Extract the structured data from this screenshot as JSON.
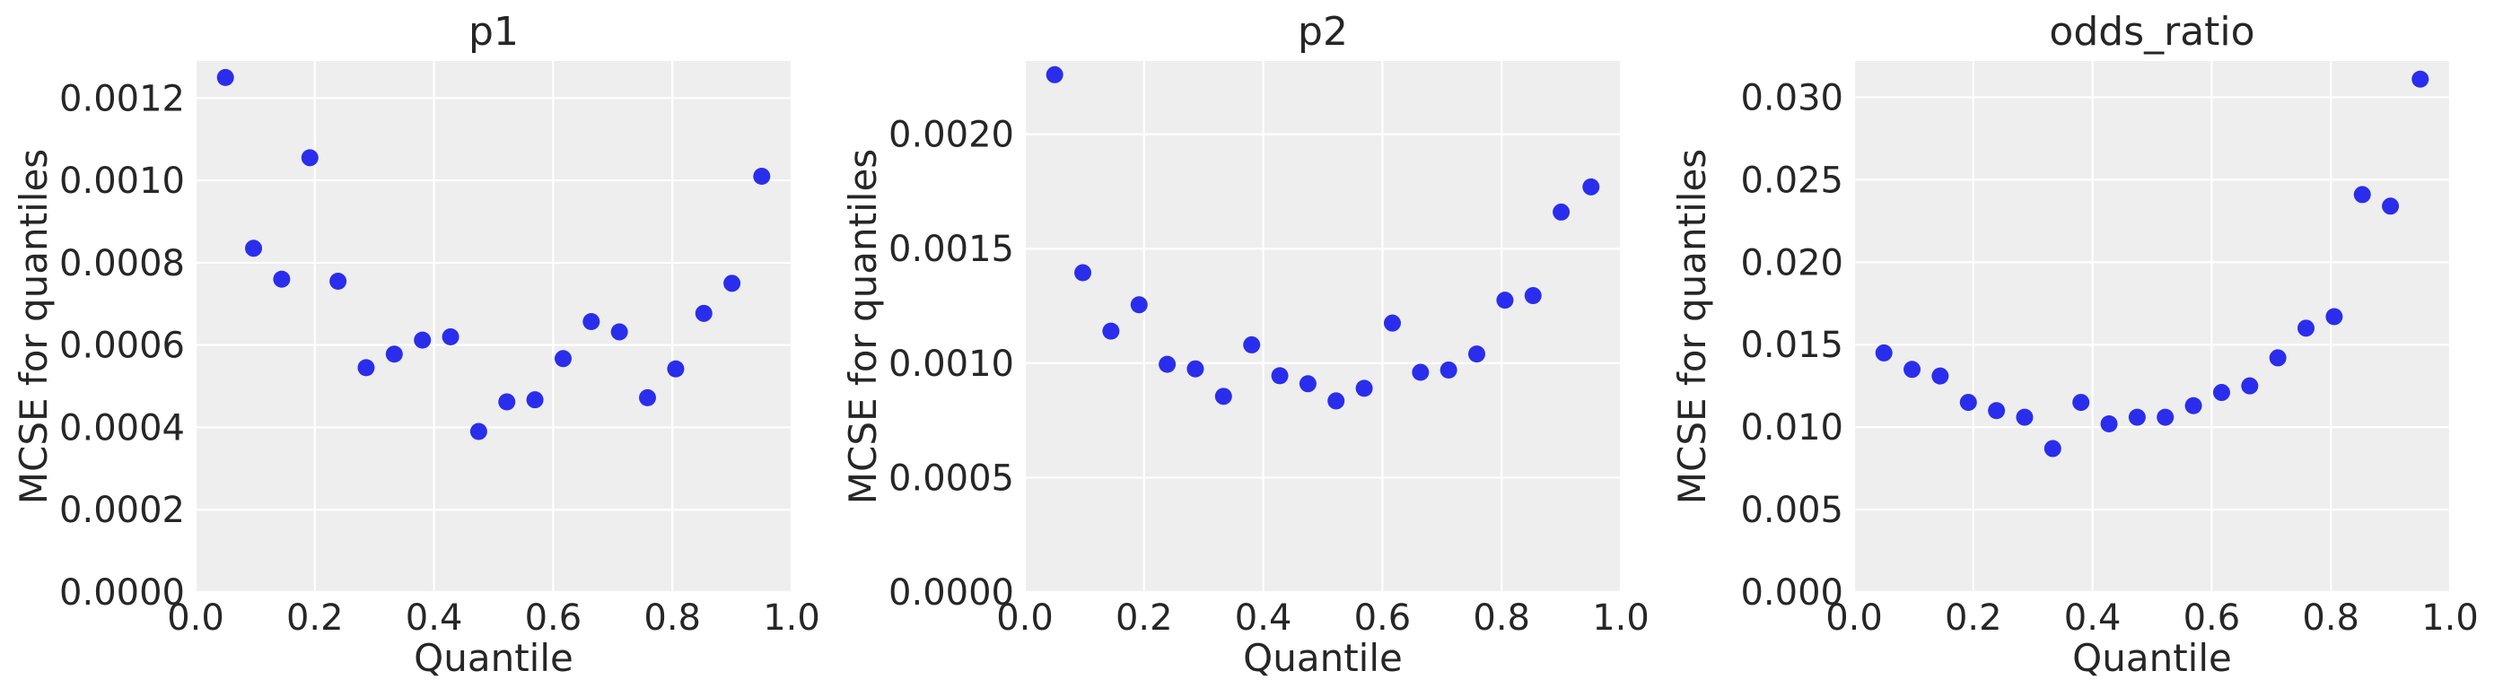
{
  "colors": {
    "marker": "#2a2eec",
    "plot_background": "#eeeeee",
    "grid": "#ffffff",
    "text": "#262626"
  },
  "chart_data": [
    {
      "type": "scatter",
      "title": "p1",
      "xlabel": "Quantile",
      "ylabel": "MCSE for quantiles",
      "xlim": [
        0.0,
        1.0
      ],
      "ylim": [
        0.0,
        0.00129
      ],
      "grid": true,
      "legend": "none",
      "x_ticks": [
        0.0,
        0.2,
        0.4,
        0.6,
        0.8,
        1.0
      ],
      "x_tick_labels": [
        "0.0",
        "0.2",
        "0.4",
        "0.6",
        "0.8",
        "1.0"
      ],
      "y_ticks": [
        0.0,
        0.0002,
        0.0004,
        0.0006,
        0.0008,
        0.001,
        0.0012
      ],
      "y_tick_labels": [
        "0.0000",
        "0.0002",
        "0.0004",
        "0.0006",
        "0.0008",
        "0.0010",
        "0.0012"
      ],
      "x": [
        0.05,
        0.0972,
        0.1444,
        0.1917,
        0.2389,
        0.2861,
        0.3333,
        0.3806,
        0.4278,
        0.475,
        0.5222,
        0.5694,
        0.6167,
        0.6639,
        0.7111,
        0.7583,
        0.8056,
        0.8528,
        0.9,
        0.95
      ],
      "y": [
        0.00125,
        0.000835,
        0.00076,
        0.001055,
        0.000755,
        0.000545,
        0.000578,
        0.000612,
        0.00062,
        0.00039,
        0.000462,
        0.000467,
        0.000567,
        0.000657,
        0.000632,
        0.000472,
        0.000542,
        0.000677,
        0.00075,
        0.00101
      ]
    },
    {
      "type": "scatter",
      "title": "p2",
      "xlabel": "Quantile",
      "ylabel": "MCSE for quantiles",
      "xlim": [
        0.0,
        1.0
      ],
      "ylim": [
        0.0,
        0.00232
      ],
      "grid": true,
      "legend": "none",
      "x_ticks": [
        0.0,
        0.2,
        0.4,
        0.6,
        0.8,
        1.0
      ],
      "x_tick_labels": [
        "0.0",
        "0.2",
        "0.4",
        "0.6",
        "0.8",
        "1.0"
      ],
      "y_ticks": [
        0.0,
        0.0005,
        0.001,
        0.0015,
        0.002
      ],
      "y_tick_labels": [
        "0.0000",
        "0.0005",
        "0.0010",
        "0.0015",
        "0.0020"
      ],
      "x": [
        0.05,
        0.0972,
        0.1444,
        0.1917,
        0.2389,
        0.2861,
        0.3333,
        0.3806,
        0.4278,
        0.475,
        0.5222,
        0.5694,
        0.6167,
        0.6639,
        0.7111,
        0.7583,
        0.8056,
        0.8528,
        0.9,
        0.95
      ],
      "y": [
        0.00226,
        0.001395,
        0.00114,
        0.001255,
        0.000995,
        0.000975,
        0.000855,
        0.00108,
        0.000945,
        0.00091,
        0.000835,
        0.00089,
        0.001175,
        0.00096,
        0.00097,
        0.00104,
        0.001275,
        0.001295,
        0.00166,
        0.00177
      ]
    },
    {
      "type": "scatter",
      "title": "odds_ratio",
      "xlabel": "Quantile",
      "ylabel": "MCSE for quantiles",
      "xlim": [
        0.0,
        1.0
      ],
      "ylim": [
        0.0,
        0.0322
      ],
      "grid": true,
      "legend": "none",
      "x_ticks": [
        0.0,
        0.2,
        0.4,
        0.6,
        0.8,
        1.0
      ],
      "x_tick_labels": [
        "0.0",
        "0.2",
        "0.4",
        "0.6",
        "0.8",
        "1.0"
      ],
      "y_ticks": [
        0.0,
        0.005,
        0.01,
        0.015,
        0.02,
        0.025,
        0.03
      ],
      "y_tick_labels": [
        "0.000",
        "0.005",
        "0.010",
        "0.015",
        "0.020",
        "0.025",
        "0.030"
      ],
      "x": [
        0.05,
        0.0972,
        0.1444,
        0.1917,
        0.2389,
        0.2861,
        0.3333,
        0.3806,
        0.4278,
        0.475,
        0.5222,
        0.5694,
        0.6167,
        0.6639,
        0.7111,
        0.7583,
        0.8056,
        0.8528,
        0.9,
        0.95
      ],
      "y": [
        0.0145,
        0.0135,
        0.0131,
        0.0115,
        0.011,
        0.0106,
        0.0087,
        0.0115,
        0.0102,
        0.0106,
        0.0106,
        0.0113,
        0.0121,
        0.0125,
        0.0142,
        0.016,
        0.0167,
        0.0241,
        0.0234,
        0.0311
      ]
    }
  ]
}
